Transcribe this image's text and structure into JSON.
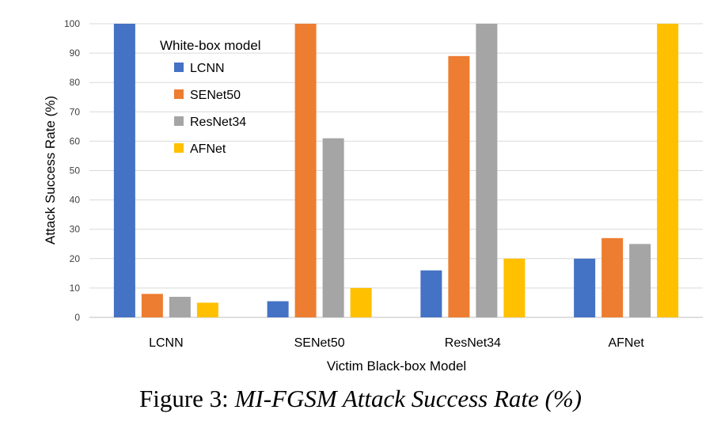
{
  "chart_data": {
    "type": "bar",
    "categories": [
      "LCNN",
      "SENet50",
      "ResNet34",
      "AFNet"
    ],
    "series": [
      {
        "name": "LCNN",
        "color": "#4472C4",
        "values": [
          100,
          5.5,
          16,
          20
        ]
      },
      {
        "name": "SENet50",
        "color": "#ED7D31",
        "values": [
          8,
          100,
          89,
          27
        ]
      },
      {
        "name": "ResNet34",
        "color": "#A5A5A5",
        "values": [
          7,
          61,
          100,
          25
        ]
      },
      {
        "name": "AFNet",
        "color": "#FFC000",
        "values": [
          5,
          10,
          20,
          100
        ]
      }
    ],
    "ylim": [
      0,
      100
    ],
    "yticks": [
      "0",
      "10",
      "20",
      "30",
      "40",
      "50",
      "60",
      "70",
      "80",
      "90",
      "100"
    ],
    "xlabel": "Victim Black-box Model",
    "ylabel": "Attack Success Rate (%)",
    "legend_title": "White-box model",
    "legend_position": "top-left, inside",
    "grid": true
  },
  "caption": {
    "prefix": "Figure 3:",
    "text": "MI-FGSM Attack Success Rate (%)"
  }
}
